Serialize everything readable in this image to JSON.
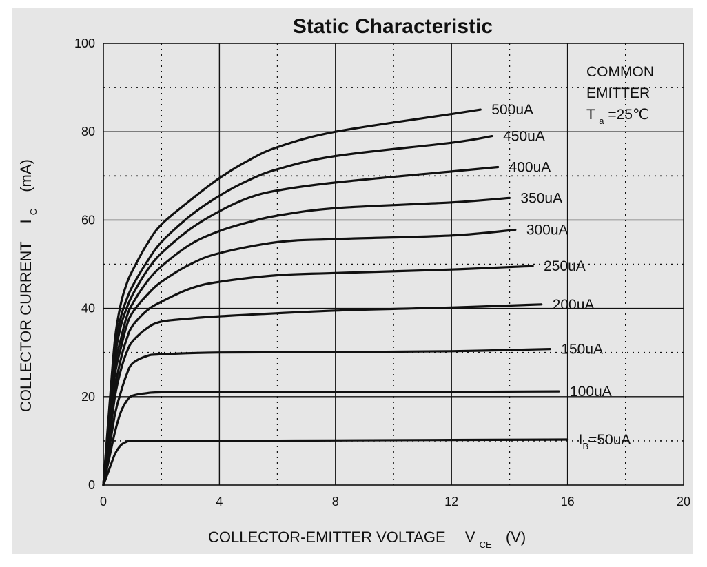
{
  "chart_data": {
    "type": "line",
    "title": "Static Characteristic",
    "xlabel": {
      "text": "COLLECTOR-EMITTER VOLTAGE",
      "symbol": "V",
      "subscript": "CE",
      "unit": "(V)"
    },
    "ylabel": {
      "text": "COLLECTOR CURRENT",
      "symbol": "I",
      "subscript": "C",
      "unit": "(mA)"
    },
    "xlim": [
      0,
      20
    ],
    "ylim": [
      0,
      100
    ],
    "xticks": [
      0,
      4,
      8,
      12,
      16,
      20
    ],
    "yticks": [
      0,
      20,
      40,
      60,
      80,
      100
    ],
    "grid": {
      "solid_x": [
        4,
        8,
        12,
        16
      ],
      "dotted_x": [
        2,
        6,
        10,
        14,
        18
      ],
      "solid_y": [
        20,
        40,
        60,
        80
      ],
      "dotted_y": [
        10,
        30,
        50,
        70,
        90
      ]
    },
    "annotation": {
      "lines": [
        "COMMON",
        "EMITTER"
      ],
      "temp_symbol": "T",
      "temp_subscript": "a",
      "temp_value": "=25℃"
    },
    "series": [
      {
        "name": "IB=50uA",
        "label_prefix": "I",
        "label_subscript": "B",
        "label_suffix": "=50uA",
        "x": [
          0,
          0.2,
          0.4,
          0.6,
          0.8,
          1.0,
          1.5,
          2,
          4,
          8,
          12,
          16
        ],
        "y": [
          0,
          3.5,
          7,
          9,
          9.8,
          10,
          10,
          10,
          10,
          10.1,
          10.2,
          10.3
        ]
      },
      {
        "name": "100uA",
        "x": [
          0,
          0.2,
          0.4,
          0.6,
          0.8,
          1.0,
          1.5,
          2,
          4,
          8,
          12,
          15.7
        ],
        "y": [
          0,
          6,
          12,
          16.5,
          19,
          20.2,
          20.8,
          21,
          21.1,
          21.1,
          21.1,
          21.2
        ]
      },
      {
        "name": "150uA",
        "x": [
          0,
          0.2,
          0.4,
          0.6,
          0.8,
          1.0,
          1.5,
          2,
          4,
          8,
          12,
          15.4
        ],
        "y": [
          0,
          8,
          16,
          21,
          25,
          27.5,
          29.2,
          29.6,
          30,
          30.1,
          30.3,
          30.8
        ]
      },
      {
        "name": "200uA",
        "x": [
          0,
          0.2,
          0.4,
          0.6,
          0.8,
          1.0,
          1.5,
          2,
          3,
          4,
          8,
          12,
          15.1
        ],
        "y": [
          0,
          10,
          20,
          26,
          30,
          32.5,
          35.5,
          37,
          37.7,
          38.2,
          39.5,
          40.2,
          40.9
        ]
      },
      {
        "name": "250uA",
        "x": [
          0,
          0.2,
          0.4,
          0.6,
          0.8,
          1.0,
          1.5,
          2,
          3,
          4,
          6,
          8,
          12,
          14.8
        ],
        "y": [
          0,
          12,
          22,
          28.5,
          33,
          36,
          39.5,
          41.5,
          44.5,
          46,
          47.5,
          48,
          48.8,
          49.6
        ]
      },
      {
        "name": "300uA",
        "x": [
          0,
          0.2,
          0.4,
          0.6,
          0.8,
          1.0,
          1.5,
          2,
          3,
          4,
          6,
          8,
          12,
          14.2
        ],
        "y": [
          0,
          13,
          25,
          31,
          36,
          39,
          43,
          46,
          50,
          52.5,
          55,
          55.7,
          56.5,
          57.8
        ]
      },
      {
        "name": "350uA",
        "x": [
          0,
          0.2,
          0.4,
          0.6,
          0.8,
          1.0,
          1.5,
          2,
          3,
          4,
          5,
          6,
          8,
          12,
          14.0
        ],
        "y": [
          0,
          14,
          27,
          33,
          38,
          41,
          46,
          49.5,
          54.5,
          57.5,
          59.5,
          61,
          62.7,
          64,
          65
        ]
      },
      {
        "name": "400uA",
        "x": [
          0,
          0.2,
          0.4,
          0.6,
          0.8,
          1.0,
          1.5,
          2,
          3,
          4,
          5,
          6,
          8,
          12,
          13.6
        ],
        "y": [
          0,
          15,
          29,
          36,
          40,
          43,
          48.5,
          52.5,
          58,
          62,
          65,
          66.7,
          68.5,
          71,
          72
        ]
      },
      {
        "name": "450uA",
        "x": [
          0,
          0.2,
          0.4,
          0.6,
          0.8,
          1.0,
          1.5,
          2,
          3,
          4,
          5,
          6,
          8,
          12,
          13.4
        ],
        "y": [
          0,
          16,
          31,
          38,
          42,
          45,
          50.5,
          55,
          61,
          65.5,
          69,
          71.5,
          74.5,
          77.5,
          79
        ]
      },
      {
        "name": "500uA",
        "x": [
          0,
          0.2,
          0.4,
          0.6,
          0.8,
          1.0,
          1.5,
          2,
          3,
          4,
          5,
          6,
          8,
          12,
          13.0
        ],
        "y": [
          0,
          17,
          33,
          41,
          45.5,
          48.5,
          54.5,
          59,
          64.5,
          69.5,
          73.5,
          76.5,
          80,
          84,
          85
        ]
      }
    ]
  }
}
